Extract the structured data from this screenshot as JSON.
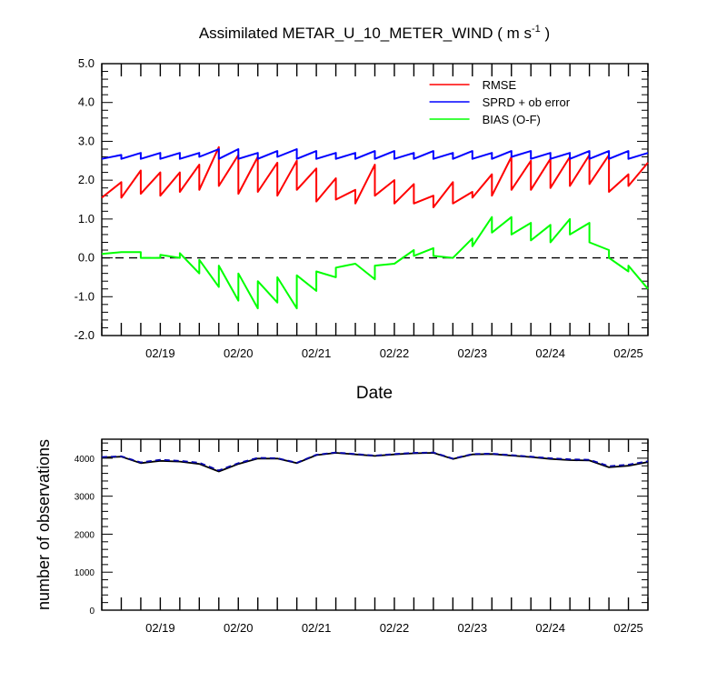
{
  "title_main": "Assimilated METAR_U_10_METER_WIND ( m s",
  "title_unit_exp": "-1",
  "title_close": " )",
  "colors": {
    "rmse": "#ff0000",
    "sprd": "#0000ff",
    "bias": "#00ff00",
    "obs_used": "#000000",
    "obs_possible": "#0000aa",
    "axis": "#000000"
  },
  "chart_data": [
    {
      "type": "line",
      "xlabel": "Date",
      "ylabel": "",
      "ylim": [
        -2.0,
        5.0
      ],
      "yticks": [
        "-2.0",
        "-1.0",
        "0.0",
        "1.0",
        "2.0",
        "3.0",
        "4.0",
        "5.0"
      ],
      "xlim": [
        "02/18 06:00",
        "02/25 06:00"
      ],
      "xticks": [
        "02/19",
        "02/20",
        "02/21",
        "02/22",
        "02/23",
        "02/24",
        "02/25"
      ],
      "xtick_dates": [
        "02/19 00:00",
        "02/20 00:00",
        "02/21 00:00",
        "02/22 00:00",
        "02/23 00:00",
        "02/24 00:00",
        "02/25 00:00"
      ],
      "zero_line": "dashed",
      "legend": {
        "placement": "top-right",
        "entries": [
          "RMSE",
          "SPRD + ob error",
          "BIAS (O-F)"
        ]
      },
      "series": [
        {
          "name": "RMSE",
          "color": "#ff0000",
          "points": [
            [
              "02/18 06:00",
              1.55
            ],
            [
              "02/18 12:00",
              1.95
            ],
            [
              "02/18 12:00",
              1.55
            ],
            [
              "02/18 18:00",
              2.25
            ],
            [
              "02/18 18:00",
              1.65
            ],
            [
              "02/19 00:00",
              2.2
            ],
            [
              "02/19 00:00",
              1.6
            ],
            [
              "02/19 06:00",
              2.2
            ],
            [
              "02/19 06:00",
              1.7
            ],
            [
              "02/19 12:00",
              2.4
            ],
            [
              "02/19 12:00",
              1.75
            ],
            [
              "02/19 18:00",
              2.85
            ],
            [
              "02/19 18:00",
              1.85
            ],
            [
              "02/20 00:00",
              2.65
            ],
            [
              "02/20 00:00",
              1.65
            ],
            [
              "02/20 06:00",
              2.6
            ],
            [
              "02/20 06:00",
              1.7
            ],
            [
              "02/20 12:00",
              2.45
            ],
            [
              "02/20 12:00",
              1.6
            ],
            [
              "02/20 18:00",
              2.5
            ],
            [
              "02/20 18:00",
              1.75
            ],
            [
              "02/21 00:00",
              2.3
            ],
            [
              "02/21 00:00",
              1.45
            ],
            [
              "02/21 06:00",
              2.05
            ],
            [
              "02/21 06:00",
              1.5
            ],
            [
              "02/21 12:00",
              1.75
            ],
            [
              "02/21 12:00",
              1.4
            ],
            [
              "02/21 18:00",
              2.4
            ],
            [
              "02/21 18:00",
              1.6
            ],
            [
              "02/22 00:00",
              2.0
            ],
            [
              "02/22 00:00",
              1.4
            ],
            [
              "02/22 06:00",
              1.9
            ],
            [
              "02/22 06:00",
              1.4
            ],
            [
              "02/22 12:00",
              1.6
            ],
            [
              "02/22 12:00",
              1.3
            ],
            [
              "02/22 18:00",
              1.95
            ],
            [
              "02/22 18:00",
              1.4
            ],
            [
              "02/23 00:00",
              1.7
            ],
            [
              "02/23 00:00",
              1.55
            ],
            [
              "02/23 06:00",
              2.15
            ],
            [
              "02/23 06:00",
              1.6
            ],
            [
              "02/23 12:00",
              2.6
            ],
            [
              "02/23 12:00",
              1.75
            ],
            [
              "02/23 18:00",
              2.5
            ],
            [
              "02/23 18:00",
              1.75
            ],
            [
              "02/24 00:00",
              2.55
            ],
            [
              "02/24 00:00",
              1.8
            ],
            [
              "02/24 06:00",
              2.6
            ],
            [
              "02/24 06:00",
              1.85
            ],
            [
              "02/24 12:00",
              2.65
            ],
            [
              "02/24 12:00",
              1.9
            ],
            [
              "02/24 18:00",
              2.65
            ],
            [
              "02/24 18:00",
              1.7
            ],
            [
              "02/25 00:00",
              2.15
            ],
            [
              "02/25 00:00",
              1.85
            ],
            [
              "02/25 06:00",
              2.45
            ]
          ]
        },
        {
          "name": "SPRD + ob error",
          "color": "#0000ff",
          "points": [
            [
              "02/18 06:00",
              2.55
            ],
            [
              "02/18 12:00",
              2.65
            ],
            [
              "02/18 12:00",
              2.55
            ],
            [
              "02/18 18:00",
              2.7
            ],
            [
              "02/18 18:00",
              2.55
            ],
            [
              "02/19 00:00",
              2.7
            ],
            [
              "02/19 00:00",
              2.55
            ],
            [
              "02/19 06:00",
              2.7
            ],
            [
              "02/19 06:00",
              2.55
            ],
            [
              "02/19 12:00",
              2.7
            ],
            [
              "02/19 12:00",
              2.6
            ],
            [
              "02/19 18:00",
              2.8
            ],
            [
              "02/19 18:00",
              2.55
            ],
            [
              "02/20 00:00",
              2.8
            ],
            [
              "02/20 00:00",
              2.55
            ],
            [
              "02/20 06:00",
              2.7
            ],
            [
              "02/20 06:00",
              2.55
            ],
            [
              "02/20 12:00",
              2.75
            ],
            [
              "02/20 12:00",
              2.6
            ],
            [
              "02/20 18:00",
              2.8
            ],
            [
              "02/20 18:00",
              2.55
            ],
            [
              "02/21 00:00",
              2.75
            ],
            [
              "02/21 00:00",
              2.55
            ],
            [
              "02/21 06:00",
              2.7
            ],
            [
              "02/21 06:00",
              2.55
            ],
            [
              "02/21 12:00",
              2.7
            ],
            [
              "02/21 12:00",
              2.55
            ],
            [
              "02/21 18:00",
              2.75
            ],
            [
              "02/21 18:00",
              2.55
            ],
            [
              "02/22 00:00",
              2.75
            ],
            [
              "02/22 00:00",
              2.55
            ],
            [
              "02/22 06:00",
              2.7
            ],
            [
              "02/22 06:00",
              2.55
            ],
            [
              "02/22 12:00",
              2.75
            ],
            [
              "02/22 12:00",
              2.55
            ],
            [
              "02/22 18:00",
              2.7
            ],
            [
              "02/22 18:00",
              2.55
            ],
            [
              "02/23 00:00",
              2.75
            ],
            [
              "02/23 00:00",
              2.55
            ],
            [
              "02/23 06:00",
              2.7
            ],
            [
              "02/23 06:00",
              2.55
            ],
            [
              "02/23 12:00",
              2.75
            ],
            [
              "02/23 12:00",
              2.6
            ],
            [
              "02/23 18:00",
              2.75
            ],
            [
              "02/23 18:00",
              2.55
            ],
            [
              "02/24 00:00",
              2.7
            ],
            [
              "02/24 00:00",
              2.55
            ],
            [
              "02/24 06:00",
              2.7
            ],
            [
              "02/24 06:00",
              2.55
            ],
            [
              "02/24 12:00",
              2.75
            ],
            [
              "02/24 12:00",
              2.55
            ],
            [
              "02/24 18:00",
              2.75
            ],
            [
              "02/24 18:00",
              2.55
            ],
            [
              "02/25 00:00",
              2.75
            ],
            [
              "02/25 00:00",
              2.55
            ],
            [
              "02/25 06:00",
              2.7
            ]
          ]
        },
        {
          "name": "BIAS (O-F)",
          "color": "#00ff00",
          "points": [
            [
              "02/18 06:00",
              0.1
            ],
            [
              "02/18 12:00",
              0.15
            ],
            [
              "02/18 18:00",
              0.15
            ],
            [
              "02/18 18:00",
              0.0
            ],
            [
              "02/19 00:00",
              0.0
            ],
            [
              "02/19 00:00",
              0.08
            ],
            [
              "02/19 06:00",
              0.0
            ],
            [
              "02/19 06:00",
              0.12
            ],
            [
              "02/19 12:00",
              -0.4
            ],
            [
              "02/19 12:00",
              -0.05
            ],
            [
              "02/19 18:00",
              -0.75
            ],
            [
              "02/19 18:00",
              -0.2
            ],
            [
              "02/20 00:00",
              -1.1
            ],
            [
              "02/20 00:00",
              -0.4
            ],
            [
              "02/20 06:00",
              -1.3
            ],
            [
              "02/20 06:00",
              -0.6
            ],
            [
              "02/20 12:00",
              -1.15
            ],
            [
              "02/20 12:00",
              -0.5
            ],
            [
              "02/20 18:00",
              -1.3
            ],
            [
              "02/20 18:00",
              -0.45
            ],
            [
              "02/21 00:00",
              -0.85
            ],
            [
              "02/21 00:00",
              -0.35
            ],
            [
              "02/21 06:00",
              -0.5
            ],
            [
              "02/21 06:00",
              -0.25
            ],
            [
              "02/21 12:00",
              -0.15
            ],
            [
              "02/21 18:00",
              -0.55
            ],
            [
              "02/21 18:00",
              -0.2
            ],
            [
              "02/22 00:00",
              -0.15
            ],
            [
              "02/22 06:00",
              0.2
            ],
            [
              "02/22 06:00",
              0.05
            ],
            [
              "02/22 12:00",
              0.25
            ],
            [
              "02/22 12:00",
              0.05
            ],
            [
              "02/22 18:00",
              0.0
            ],
            [
              "02/23 00:00",
              0.5
            ],
            [
              "02/23 00:00",
              0.3
            ],
            [
              "02/23 06:00",
              1.05
            ],
            [
              "02/23 06:00",
              0.65
            ],
            [
              "02/23 12:00",
              1.05
            ],
            [
              "02/23 12:00",
              0.6
            ],
            [
              "02/23 18:00",
              0.9
            ],
            [
              "02/23 18:00",
              0.45
            ],
            [
              "02/24 00:00",
              0.85
            ],
            [
              "02/24 00:00",
              0.4
            ],
            [
              "02/24 06:00",
              1.0
            ],
            [
              "02/24 06:00",
              0.6
            ],
            [
              "02/24 12:00",
              0.9
            ],
            [
              "02/24 12:00",
              0.4
            ],
            [
              "02/24 18:00",
              0.2
            ],
            [
              "02/24 18:00",
              0.0
            ],
            [
              "02/25 00:00",
              -0.35
            ],
            [
              "02/25 00:00",
              -0.2
            ],
            [
              "02/25 06:00",
              -0.8
            ]
          ]
        }
      ]
    },
    {
      "type": "line",
      "xlabel": "",
      "ylabel": "number of observations",
      "ylim": [
        0,
        4500
      ],
      "yticks": [
        "0",
        "1000",
        "2000",
        "3000",
        "4000"
      ],
      "xlim": [
        "02/18 06:00",
        "02/25 06:00"
      ],
      "xticks": [
        "02/19",
        "02/20",
        "02/21",
        "02/22",
        "02/23",
        "02/24",
        "02/25"
      ],
      "xtick_dates": [
        "02/19 00:00",
        "02/20 00:00",
        "02/21 00:00",
        "02/22 00:00",
        "02/23 00:00",
        "02/24 00:00",
        "02/25 00:00"
      ],
      "series": [
        {
          "color": "#000000",
          "style": "solid",
          "points": [
            [
              "02/18 06:00",
              4020
            ],
            [
              "02/18 12:00",
              4040
            ],
            [
              "02/18 18:00",
              3870
            ],
            [
              "02/19 00:00",
              3930
            ],
            [
              "02/19 06:00",
              3910
            ],
            [
              "02/19 12:00",
              3850
            ],
            [
              "02/19 18:00",
              3650
            ],
            [
              "02/20 00:00",
              3850
            ],
            [
              "02/20 06:00",
              3990
            ],
            [
              "02/20 12:00",
              3990
            ],
            [
              "02/20 18:00",
              3870
            ],
            [
              "02/21 00:00",
              4080
            ],
            [
              "02/21 06:00",
              4140
            ],
            [
              "02/21 12:00",
              4100
            ],
            [
              "02/21 18:00",
              4060
            ],
            [
              "02/22 00:00",
              4100
            ],
            [
              "02/22 06:00",
              4130
            ],
            [
              "02/22 12:00",
              4140
            ],
            [
              "02/22 18:00",
              3980
            ],
            [
              "02/23 00:00",
              4100
            ],
            [
              "02/23 06:00",
              4110
            ],
            [
              "02/23 12:00",
              4070
            ],
            [
              "02/23 18:00",
              4030
            ],
            [
              "02/24 00:00",
              3980
            ],
            [
              "02/24 06:00",
              3950
            ],
            [
              "02/24 12:00",
              3940
            ],
            [
              "02/24 18:00",
              3760
            ],
            [
              "02/25 00:00",
              3800
            ],
            [
              "02/25 06:00",
              3900
            ]
          ]
        },
        {
          "color": "#0000aa",
          "style": "dashed",
          "points": [
            [
              "02/18 06:00",
              4030
            ],
            [
              "02/18 12:00",
              4050
            ],
            [
              "02/18 18:00",
              3890
            ],
            [
              "02/19 00:00",
              3960
            ],
            [
              "02/19 06:00",
              3930
            ],
            [
              "02/19 12:00",
              3880
            ],
            [
              "02/19 18:00",
              3680
            ],
            [
              "02/20 00:00",
              3870
            ],
            [
              "02/20 06:00",
              4010
            ],
            [
              "02/20 12:00",
              4000
            ],
            [
              "02/20 18:00",
              3880
            ],
            [
              "02/21 00:00",
              4090
            ],
            [
              "02/21 06:00",
              4150
            ],
            [
              "02/21 12:00",
              4110
            ],
            [
              "02/21 18:00",
              4070
            ],
            [
              "02/22 00:00",
              4110
            ],
            [
              "02/22 06:00",
              4140
            ],
            [
              "02/22 12:00",
              4150
            ],
            [
              "02/22 18:00",
              3990
            ],
            [
              "02/23 00:00",
              4110
            ],
            [
              "02/23 06:00",
              4120
            ],
            [
              "02/23 12:00",
              4080
            ],
            [
              "02/23 18:00",
              4040
            ],
            [
              "02/24 00:00",
              4000
            ],
            [
              "02/24 06:00",
              3970
            ],
            [
              "02/24 12:00",
              3960
            ],
            [
              "02/24 18:00",
              3790
            ],
            [
              "02/25 00:00",
              3830
            ],
            [
              "02/25 06:00",
              3920
            ]
          ]
        }
      ]
    }
  ]
}
